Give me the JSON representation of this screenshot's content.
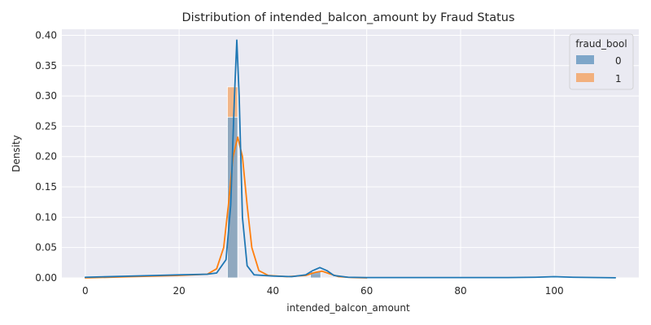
{
  "chart_data": {
    "type": "histogram+kde",
    "title": "Distribution of intended_balcon_amount by Fraud Status",
    "xlabel": "intended_balcon_amount",
    "ylabel": "Density",
    "xlim": [
      -5,
      118
    ],
    "ylim": [
      0,
      0.41
    ],
    "x_ticks": [
      0,
      20,
      40,
      60,
      80,
      100
    ],
    "y_ticks": [
      0.0,
      0.05,
      0.1,
      0.15,
      0.2,
      0.25,
      0.3,
      0.35,
      0.4
    ],
    "x_tick_labels": [
      "0",
      "20",
      "40",
      "60",
      "80",
      "100"
    ],
    "y_tick_labels": [
      "0.00",
      "0.05",
      "0.10",
      "0.15",
      "0.20",
      "0.25",
      "0.30",
      "0.35",
      "0.40"
    ],
    "grid": true,
    "legend": {
      "title": "fraud_bool",
      "position": "top-right",
      "entries": [
        "0",
        "1"
      ]
    },
    "colors": {
      "background": "#eaeaf2",
      "grid": "#ffffff",
      "series0_fill": "#7ea6c9",
      "series1_fill": "#f2b07d",
      "series0_line": "#1f77b4",
      "series1_line": "#ff7f0e"
    },
    "series": [
      {
        "name": "0",
        "histogram": {
          "bin_width": 2.2,
          "bins": [
            {
              "x": 31.4,
              "density": 0.265
            },
            {
              "x": 49.1,
              "density": 0.01
            }
          ]
        },
        "kde": [
          [
            0,
            0.001
          ],
          [
            10,
            0.003
          ],
          [
            20,
            0.005
          ],
          [
            26,
            0.006
          ],
          [
            28,
            0.008
          ],
          [
            30,
            0.03
          ],
          [
            31,
            0.12
          ],
          [
            31.8,
            0.3
          ],
          [
            32.3,
            0.392
          ],
          [
            32.8,
            0.3
          ],
          [
            33.5,
            0.1
          ],
          [
            34.5,
            0.02
          ],
          [
            36,
            0.005
          ],
          [
            40,
            0.003
          ],
          [
            44,
            0.002
          ],
          [
            47,
            0.005
          ],
          [
            48.5,
            0.012
          ],
          [
            50,
            0.017
          ],
          [
            51.5,
            0.012
          ],
          [
            53,
            0.004
          ],
          [
            56,
            0.001
          ],
          [
            60,
            0.0005
          ],
          [
            90,
            0.0005
          ],
          [
            96,
            0.001
          ],
          [
            100,
            0.002
          ],
          [
            104,
            0.001
          ],
          [
            113,
            0.0002
          ]
        ]
      },
      {
        "name": "1",
        "histogram": {
          "bin_width": 2.2,
          "bins": [
            {
              "x": 31.4,
              "density": 0.315
            },
            {
              "x": 49.1,
              "density": 0.006
            }
          ]
        },
        "kde": [
          [
            0,
            0.0
          ],
          [
            10,
            0.002
          ],
          [
            20,
            0.004
          ],
          [
            26,
            0.006
          ],
          [
            28,
            0.015
          ],
          [
            29.5,
            0.05
          ],
          [
            30.5,
            0.12
          ],
          [
            31.5,
            0.2
          ],
          [
            32.5,
            0.232
          ],
          [
            33.5,
            0.2
          ],
          [
            34.5,
            0.12
          ],
          [
            35.5,
            0.05
          ],
          [
            37,
            0.012
          ],
          [
            39,
            0.004
          ],
          [
            43,
            0.002
          ],
          [
            47,
            0.004
          ],
          [
            49,
            0.009
          ],
          [
            50.5,
            0.011
          ],
          [
            52,
            0.007
          ],
          [
            54,
            0.002
          ],
          [
            57,
            0.0005
          ],
          [
            60,
            0.0
          ]
        ]
      }
    ]
  }
}
